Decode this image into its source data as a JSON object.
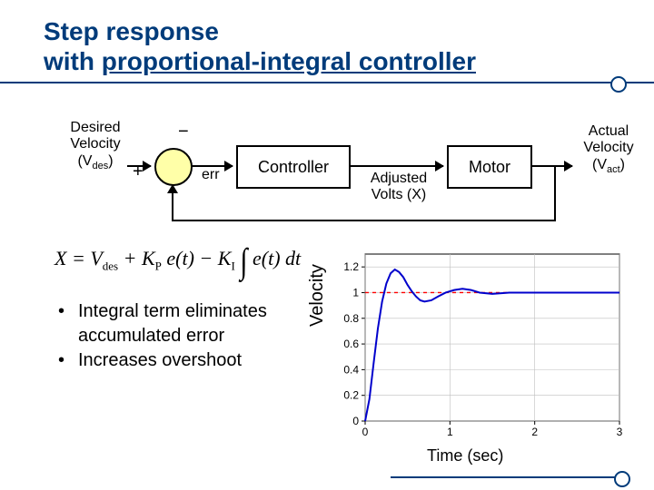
{
  "title": {
    "line1": "Step response",
    "line2": "with ",
    "line2u": "proportional-integral controller"
  },
  "diagram": {
    "input_label_l1": "Desired",
    "input_label_l2": "Velocity",
    "input_label_l3a": "(V",
    "input_label_l3b": "des",
    "input_label_l3c": ")",
    "plus": "+",
    "minus": "−",
    "err": "err",
    "controller": "Controller",
    "motor": "Motor",
    "adjusted_l1": "Adjusted",
    "adjusted_l2": "Volts (X)",
    "output_l1": "Actual",
    "output_l2": "Velocity",
    "output_l3a": "(V",
    "output_l3b": "act",
    "output_l3c": ")"
  },
  "equation": {
    "X": "X",
    " eq ": " = ",
    "Vdes_a": "V",
    "Vdes_b": "des",
    " p1 ": " + ",
    "Kp_a": "K",
    "Kp_b": "P",
    " e1 ": " e(t) ",
    "minus": " − ",
    "Ki_a": "K",
    "Ki_b": "I",
    " int ": "∫",
    " e2 ": " e(t) dt"
  },
  "bullets": {
    "b1": "Integral term eliminates accumulated error",
    "b2": "Increases overshoot"
  },
  "chart": {
    "type": "step-response-line",
    "xlim": [
      0,
      3
    ],
    "ylim": [
      0,
      1.3
    ],
    "xticks": [
      0,
      1,
      2,
      3
    ],
    "yticks": [
      0,
      0.2,
      0.4,
      0.6,
      0.8,
      1.0,
      1.2
    ],
    "reference": 1.0,
    "reference_color": "#ff0000",
    "reference_dash": "4 4",
    "curve_color": "#0000cc",
    "curve_width": 2,
    "grid_color": "#bfbfbf",
    "axis_color": "#000000",
    "background": "#ffffff",
    "curve": [
      [
        0,
        0
      ],
      [
        0.05,
        0.17
      ],
      [
        0.1,
        0.45
      ],
      [
        0.15,
        0.72
      ],
      [
        0.2,
        0.93
      ],
      [
        0.25,
        1.07
      ],
      [
        0.3,
        1.15
      ],
      [
        0.35,
        1.18
      ],
      [
        0.4,
        1.16
      ],
      [
        0.45,
        1.12
      ],
      [
        0.5,
        1.06
      ],
      [
        0.55,
        1.01
      ],
      [
        0.6,
        0.97
      ],
      [
        0.65,
        0.94
      ],
      [
        0.7,
        0.93
      ],
      [
        0.78,
        0.94
      ],
      [
        0.86,
        0.97
      ],
      [
        0.95,
        1.0
      ],
      [
        1.05,
        1.02
      ],
      [
        1.15,
        1.03
      ],
      [
        1.25,
        1.02
      ],
      [
        1.35,
        1.0
      ],
      [
        1.5,
        0.99
      ],
      [
        1.7,
        1.0
      ],
      [
        2.0,
        1.0
      ],
      [
        2.5,
        1.0
      ],
      [
        3.0,
        1.0
      ]
    ],
    "ylabel": "Velocity",
    "xlabel": "Time (sec)"
  },
  "colors": {
    "title": "#003b7a",
    "summing_fill": "#ffffa8"
  }
}
